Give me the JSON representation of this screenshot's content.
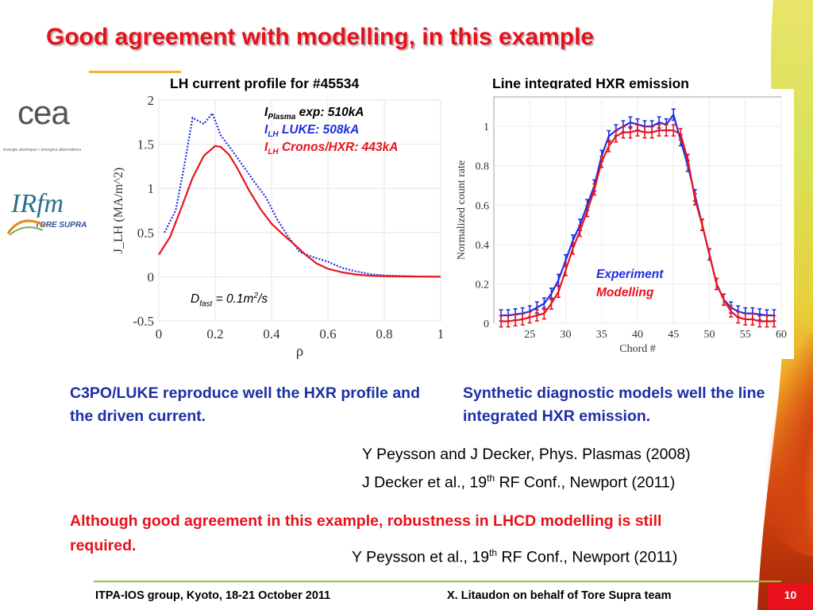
{
  "slide": {
    "title": "Good agreement with modelling, in this example",
    "page_number": "10",
    "footer_left": "ITPA-IOS group, Kyoto, 18-21 October 2011",
    "footer_right": "X. Litaudon on behalf of Tore Supra team"
  },
  "logos": {
    "cea_text": "cea",
    "cea_tagline": "énergie atomique • énergies alternatives",
    "irfm_text": "IRfm",
    "irfm_sub": "TORE SUPRA"
  },
  "left_chart": {
    "heading": "LH current profile for #45534",
    "annotations": {
      "plasma_I": "I",
      "plasma_sub": "Plasma",
      "plasma_val": " exp: 510kA",
      "luke_I": "I",
      "luke_sub": "LH",
      "luke_val": " LUKE: 508kA",
      "cronos_I": "I",
      "cronos_sub": "LH",
      "cronos_val": " Cronos/HXR: 443kA",
      "dfast_D": "D",
      "dfast_sub": "fast",
      "dfast_val": " = 0.1m",
      "dfast_sup": "2",
      "dfast_tail": "/s"
    }
  },
  "right_chart": {
    "heading": "Line integrated HXR emission",
    "legend": [
      "Experiment",
      "Modelling"
    ]
  },
  "colors": {
    "title_red": "#e8101a",
    "text_blue": "#1c2fa6",
    "curve_blue": "#1f2fe0",
    "curve_red": "#e8141e",
    "accent_orange": "#f3b234",
    "footer_green": "#8cc63f"
  },
  "chart_data": [
    {
      "type": "line",
      "title": "LH current profile for #45534",
      "xlabel": "ρ",
      "ylabel": "J_LH (MA/m^2)",
      "xlim": [
        0,
        1
      ],
      "ylim": [
        -0.5,
        2
      ],
      "xticks": [
        "0",
        "0.2",
        "0.4",
        "0.6",
        "0.8",
        "1"
      ],
      "yticks": [
        "-0.5",
        "0",
        "0.5",
        "1",
        "1.5",
        "2"
      ],
      "grid": true,
      "series": [
        {
          "name": "I_LH LUKE: 508kA",
          "color": "#1f2fe0",
          "style": "dotted",
          "x": [
            0.02,
            0.06,
            0.09,
            0.12,
            0.16,
            0.19,
            0.22,
            0.26,
            0.3,
            0.34,
            0.38,
            0.42,
            0.46,
            0.5,
            0.55,
            0.6,
            0.65,
            0.7,
            0.75,
            0.8,
            0.85,
            0.9,
            0.95,
            1.0
          ],
          "y": [
            0.5,
            0.75,
            1.25,
            1.8,
            1.73,
            1.85,
            1.6,
            1.43,
            1.25,
            1.07,
            0.9,
            0.65,
            0.45,
            0.28,
            0.22,
            0.17,
            0.1,
            0.06,
            0.03,
            0.015,
            0.01,
            0.005,
            0.0,
            0.0
          ]
        },
        {
          "name": "I_LH Cronos/HXR: 443kA",
          "color": "#e8141e",
          "style": "solid",
          "x": [
            0.0,
            0.04,
            0.08,
            0.12,
            0.16,
            0.2,
            0.22,
            0.25,
            0.28,
            0.32,
            0.36,
            0.4,
            0.44,
            0.48,
            0.52,
            0.56,
            0.6,
            0.65,
            0.7,
            0.75,
            0.8,
            0.9,
            1.0
          ],
          "y": [
            0.25,
            0.45,
            0.78,
            1.12,
            1.37,
            1.48,
            1.47,
            1.38,
            1.22,
            0.98,
            0.77,
            0.6,
            0.48,
            0.37,
            0.25,
            0.15,
            0.09,
            0.05,
            0.025,
            0.012,
            0.006,
            0.002,
            0.0
          ]
        }
      ]
    },
    {
      "type": "line",
      "title": "Line integrated HXR emission",
      "xlabel": "Chord #",
      "ylabel": "Normalized count rate",
      "xlim": [
        20,
        60
      ],
      "ylim": [
        0,
        1.15
      ],
      "xticks": [
        "25",
        "30",
        "35",
        "40",
        "45",
        "50",
        "55",
        "60"
      ],
      "yticks": [
        "0",
        "0.2",
        "0.4",
        "0.6",
        "0.8",
        "1"
      ],
      "grid": true,
      "legend_position": "center-right",
      "series": [
        {
          "name": "Experiment",
          "color": "#1f2fe0",
          "error_bars": true,
          "x": [
            21,
            22,
            23,
            24,
            25,
            26,
            27,
            28,
            29,
            30,
            31,
            32,
            33,
            34,
            35,
            36,
            37,
            38,
            39,
            40,
            41,
            42,
            43,
            44,
            45,
            46,
            47,
            48,
            49,
            50,
            51,
            52,
            53,
            54,
            55,
            56,
            57,
            58,
            59
          ],
          "y": [
            0.04,
            0.04,
            0.045,
            0.05,
            0.06,
            0.08,
            0.1,
            0.15,
            0.22,
            0.32,
            0.42,
            0.5,
            0.6,
            0.7,
            0.85,
            0.95,
            0.98,
            1.0,
            1.02,
            1.01,
            1.0,
            1.0,
            1.02,
            1.01,
            1.06,
            0.93,
            0.8,
            0.65,
            0.5,
            0.35,
            0.2,
            0.12,
            0.08,
            0.06,
            0.05,
            0.05,
            0.045,
            0.04,
            0.04
          ]
        },
        {
          "name": "Modelling",
          "color": "#e8141e",
          "error_bars": true,
          "x": [
            21,
            22,
            23,
            24,
            25,
            26,
            27,
            28,
            29,
            30,
            31,
            32,
            33,
            34,
            35,
            36,
            37,
            38,
            39,
            40,
            41,
            42,
            43,
            44,
            45,
            46,
            47,
            48,
            49,
            50,
            51,
            52,
            53,
            54,
            55,
            56,
            57,
            58,
            59
          ],
          "y": [
            0.01,
            0.01,
            0.015,
            0.02,
            0.03,
            0.04,
            0.05,
            0.1,
            0.16,
            0.27,
            0.38,
            0.47,
            0.57,
            0.68,
            0.82,
            0.9,
            0.95,
            0.97,
            0.97,
            0.98,
            0.97,
            0.97,
            0.98,
            0.98,
            0.98,
            0.96,
            0.83,
            0.63,
            0.5,
            0.35,
            0.2,
            0.12,
            0.06,
            0.03,
            0.02,
            0.02,
            0.01,
            0.01,
            0.01
          ]
        }
      ]
    }
  ],
  "text": {
    "left_para": "C3PO/LUKE reproduce well the HXR profile and the driven current.",
    "right_para": "Synthetic diagnostic models well the line integrated HXR emission.",
    "ref1": "Y Peysson and J Decker, Phys. Plasmas (2008)",
    "ref2_a": "J Decker et al., 19",
    "ref2_sup": "th",
    "ref2_b": " RF Conf., Newport (2011)",
    "warning": "Although good agreement in this example, robustness in LHCD modelling is still required.",
    "ref3_a": "Y Peysson et al., 19",
    "ref3_sup": "th",
    "ref3_b": " RF Conf., Newport (2011)"
  }
}
